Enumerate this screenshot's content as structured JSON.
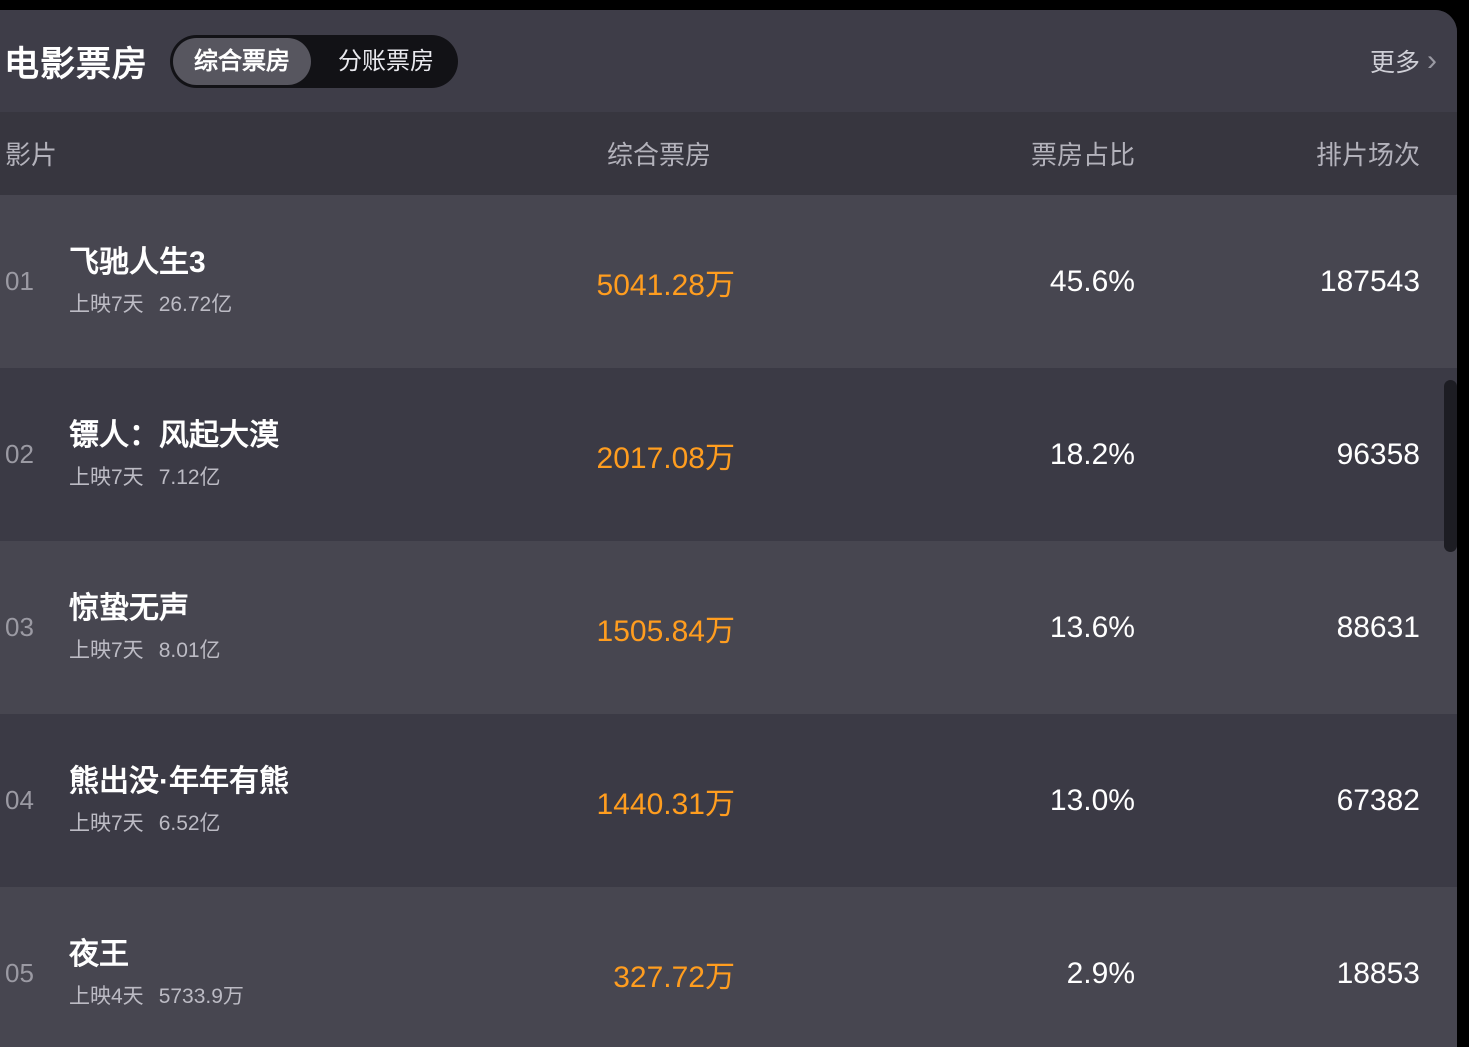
{
  "header": {
    "title": "电影票房",
    "tabs": [
      {
        "label": "综合票房",
        "active": true
      },
      {
        "label": "分账票房",
        "active": false
      }
    ],
    "more_label": "更多",
    "more_chevron": "›"
  },
  "table": {
    "columns": [
      "影片",
      "综合票房",
      "票房占比",
      "排片场次"
    ],
    "rows": [
      {
        "rank": "01",
        "title": "飞驰人生3",
        "release": "上映7天",
        "total": "26.72亿",
        "box_office": "5041.28万",
        "share": "45.6%",
        "screenings": "187543"
      },
      {
        "rank": "02",
        "title": "镖人：风起大漠",
        "release": "上映7天",
        "total": "7.12亿",
        "box_office": "2017.08万",
        "share": "18.2%",
        "screenings": "96358"
      },
      {
        "rank": "03",
        "title": "惊蛰无声",
        "release": "上映7天",
        "total": "8.01亿",
        "box_office": "1505.84万",
        "share": "13.6%",
        "screenings": "88631"
      },
      {
        "rank": "04",
        "title": "熊出没·年年有熊",
        "release": "上映7天",
        "total": "6.52亿",
        "box_office": "1440.31万",
        "share": "13.0%",
        "screenings": "67382"
      },
      {
        "rank": "05",
        "title": "夜王",
        "release": "上映4天",
        "total": "5733.9万",
        "box_office": "327.72万",
        "share": "2.9%",
        "screenings": "18853"
      }
    ]
  },
  "colors": {
    "accent_orange": "#ff9d1f",
    "panel_header_bg": "#3e3d48",
    "table_header_bg": "#37363f",
    "row_odd_bg": "#474650",
    "row_even_bg": "#3b3a45",
    "tab_bar_bg": "#121216",
    "tab_active_bg": "#57565f"
  }
}
